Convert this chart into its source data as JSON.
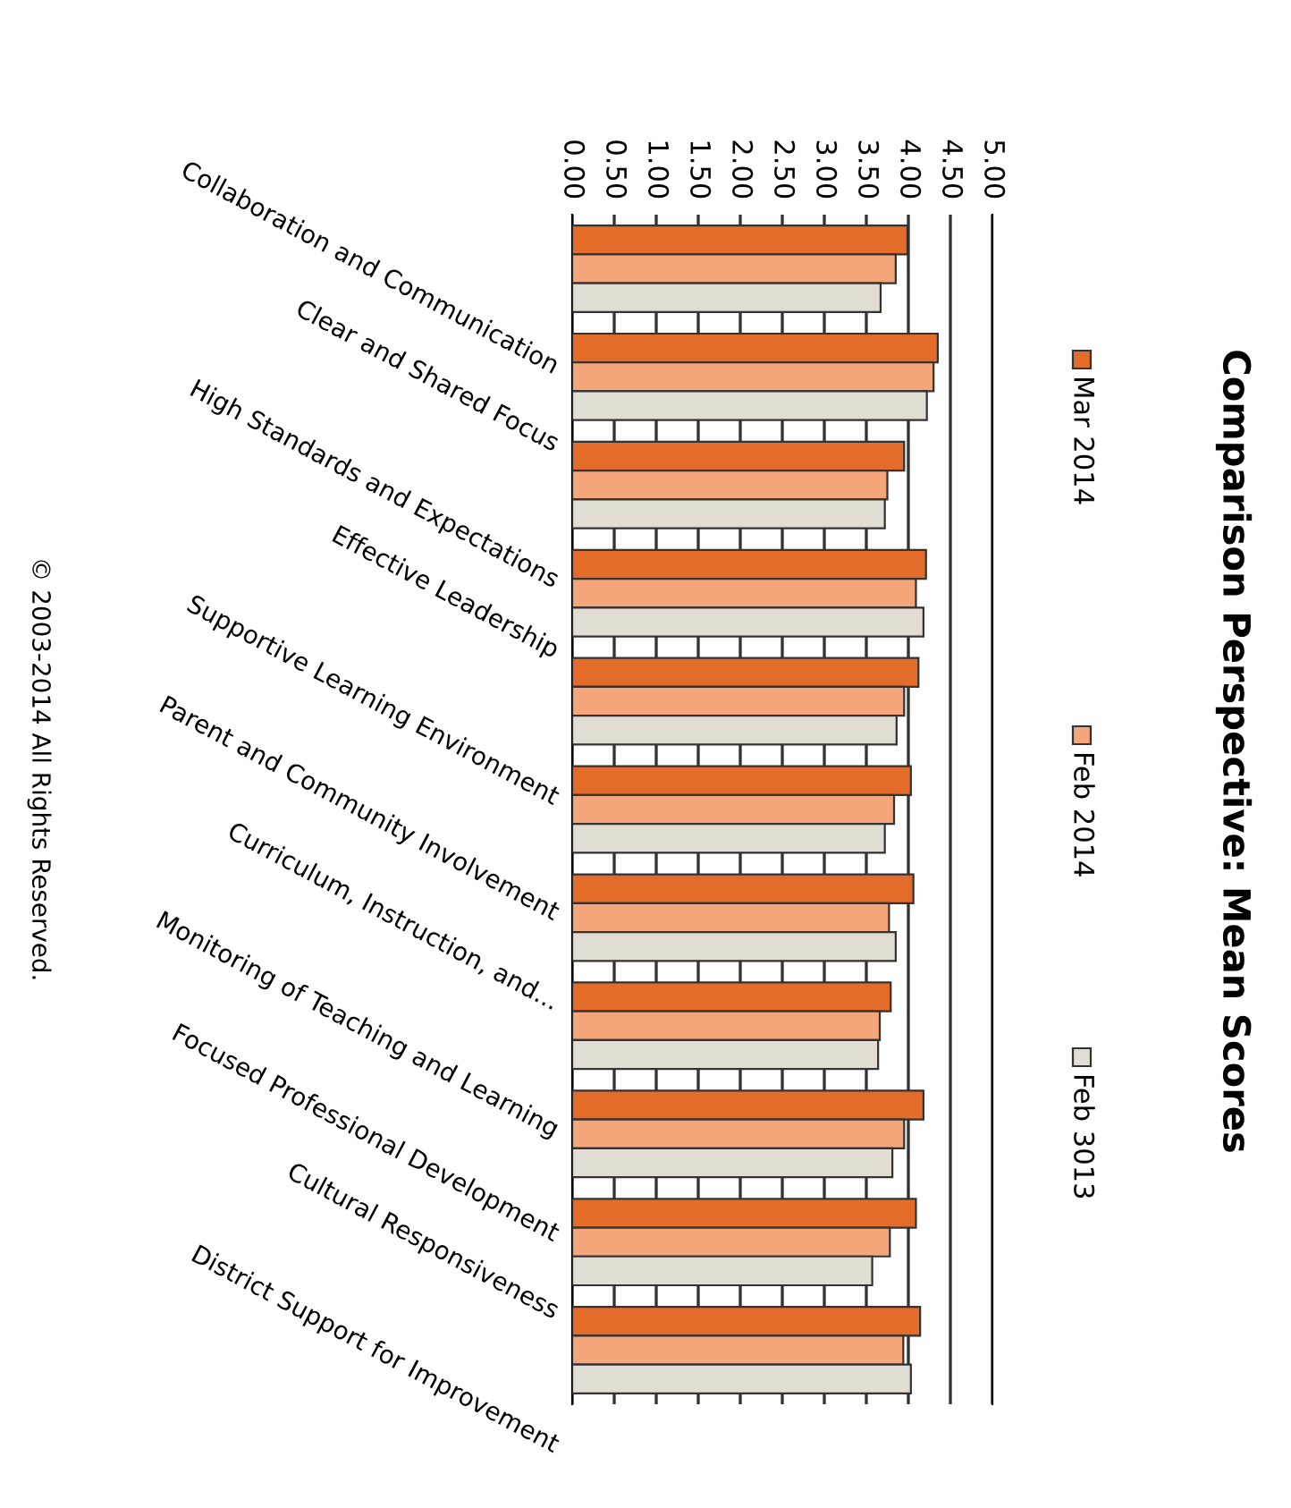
{
  "chart_data": {
    "type": "bar",
    "orientation": "horizontal",
    "title": "Comparison Perspective: Mean Scores",
    "categories": [
      "Collaboration and Communication",
      "Clear and Shared Focus",
      "High Standards and Expectations",
      "Effective Leadership",
      "Supportive Learning Environment",
      "Parent and Community Involvement",
      "Curriculum, Instruction, and...",
      "Monitoring of Teaching and Learning",
      "Focused Professional Development",
      "Cultural Responsiveness",
      "District Support for Improvement"
    ],
    "series": [
      {
        "name": "Mar 2014",
        "color": "#e36c2a",
        "values": [
          3.99,
          4.35,
          3.95,
          4.21,
          4.12,
          4.03,
          4.06,
          3.79,
          4.18,
          4.09,
          4.14
        ]
      },
      {
        "name": "Feb 2014",
        "color": "#f4a57a",
        "values": [
          3.85,
          4.3,
          3.75,
          4.09,
          3.95,
          3.83,
          3.77,
          3.66,
          3.95,
          3.78,
          3.94
        ]
      },
      {
        "name": "Feb 3013",
        "color": "#e2ddd2",
        "values": [
          3.67,
          4.22,
          3.72,
          4.18,
          3.86,
          3.72,
          3.85,
          3.64,
          3.81,
          3.57,
          4.03
        ]
      }
    ],
    "xlim": [
      0,
      5
    ],
    "xticks": [
      {
        "value": 0,
        "label": "0.00"
      },
      {
        "value": 0.5,
        "label": "0.50"
      },
      {
        "value": 1,
        "label": "1.00"
      },
      {
        "value": 1.5,
        "label": "1.50"
      },
      {
        "value": 2,
        "label": "2.00"
      },
      {
        "value": 2.5,
        "label": "2.50"
      },
      {
        "value": 3,
        "label": "3.00"
      },
      {
        "value": 3.5,
        "label": "3.50"
      },
      {
        "value": 4,
        "label": "4.00"
      },
      {
        "value": 4.5,
        "label": "4.50"
      },
      {
        "value": 5,
        "label": "5.00"
      }
    ],
    "grid": "x",
    "legend": "right",
    "annotations": [
      "© 2003-2014 All Rights Reserved."
    ]
  }
}
